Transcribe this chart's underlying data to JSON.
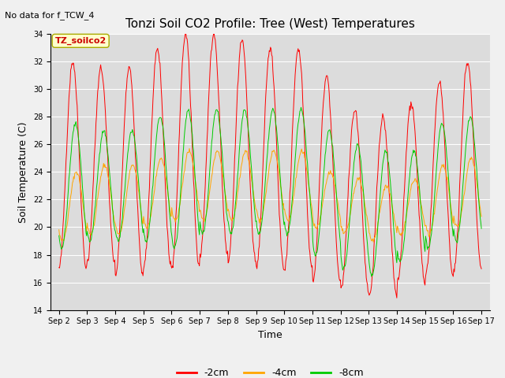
{
  "title": "Tonzi Soil CO2 Profile: Tree (West) Temperatures",
  "no_data_label": "No data for f_TCW_4",
  "box_label": "TZ_soilco2",
  "xlabel": "Time",
  "ylabel": "Soil Temperature (C)",
  "ylim": [
    14,
    34
  ],
  "yticks": [
    14,
    16,
    18,
    20,
    22,
    24,
    26,
    28,
    30,
    32,
    34
  ],
  "background_color": "#dcdcdc",
  "fig_background": "#f0f0f0",
  "series": [
    {
      "label": "-2cm",
      "color": "#ff0000"
    },
    {
      "label": "-4cm",
      "color": "#ffa500"
    },
    {
      "label": "-8cm",
      "color": "#00cc00"
    }
  ],
  "n_days": 15,
  "samples_per_day": 48,
  "daily_bases_2": [
    24.5,
    24.5,
    24.0,
    25.0,
    25.5,
    26.0,
    25.5,
    25.0,
    25.0,
    23.5,
    22.0,
    21.5,
    22.5,
    23.5,
    24.5
  ],
  "daily_amps_2": [
    7.5,
    7.0,
    7.5,
    8.0,
    8.5,
    8.0,
    8.0,
    8.0,
    8.0,
    7.5,
    6.5,
    6.5,
    6.5,
    7.0,
    7.5
  ],
  "daily_bases_4": [
    21.5,
    22.0,
    22.0,
    22.5,
    23.0,
    23.0,
    23.0,
    23.0,
    23.0,
    22.0,
    21.5,
    21.0,
    21.5,
    22.0,
    22.5
  ],
  "daily_amps_4": [
    2.5,
    2.5,
    2.5,
    2.5,
    2.5,
    2.5,
    2.5,
    2.5,
    2.5,
    2.0,
    2.0,
    2.0,
    2.0,
    2.5,
    2.5
  ],
  "daily_bases_8": [
    23.0,
    23.0,
    23.0,
    23.5,
    23.5,
    24.0,
    24.0,
    24.0,
    24.0,
    22.5,
    21.5,
    21.0,
    21.5,
    23.0,
    23.5
  ],
  "daily_amps_8": [
    4.5,
    4.0,
    4.0,
    4.5,
    5.0,
    4.5,
    4.5,
    4.5,
    4.5,
    4.5,
    4.5,
    4.5,
    4.0,
    4.5,
    4.5
  ],
  "phase_2": 0.25,
  "phase_4": 0.38,
  "phase_8": 0.35,
  "title_fontsize": 11,
  "label_fontsize": 9,
  "tick_fontsize": 7,
  "legend_fontsize": 9
}
